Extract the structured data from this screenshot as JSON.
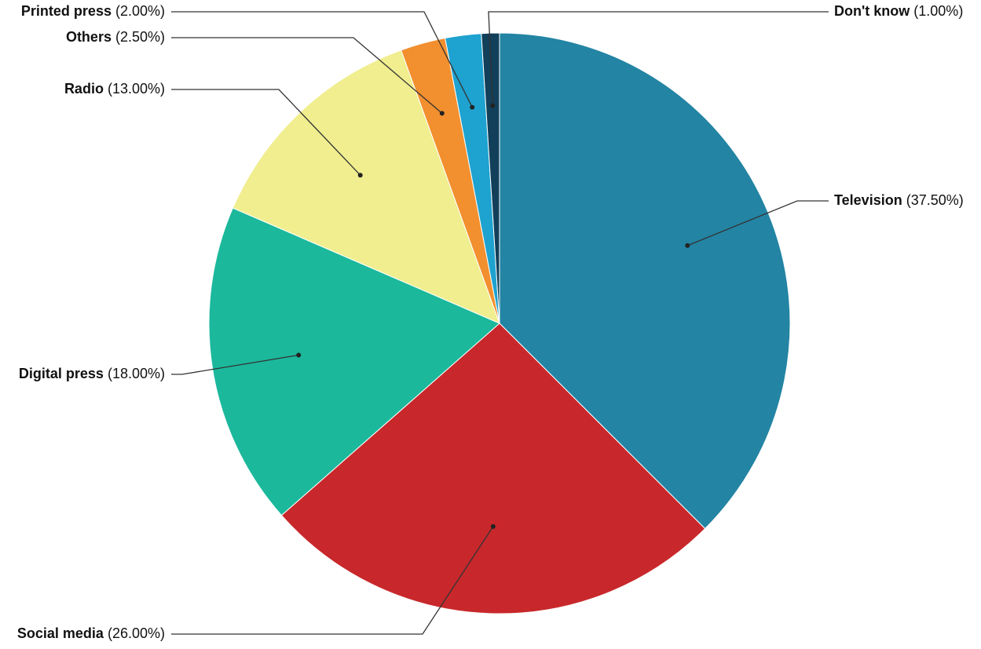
{
  "chart_data": {
    "type": "pie",
    "categories": [
      "Television",
      "Social media",
      "Digital press",
      "Radio",
      "Others",
      "Printed press",
      "Don't know"
    ],
    "values": [
      37.5,
      26,
      18,
      13,
      2.5,
      2,
      1
    ],
    "value_labels": [
      "(37.50%)",
      "(26.00%)",
      "(18.00%)",
      "(13.00%)",
      "(2.50%)",
      "(2.00%)",
      "(1.00%)"
    ],
    "colors": [
      "#2384a3",
      "#c8282b",
      "#1bb89c",
      "#f0ee8f",
      "#f28f2e",
      "#1ea2cf",
      "#123f5a"
    ]
  }
}
